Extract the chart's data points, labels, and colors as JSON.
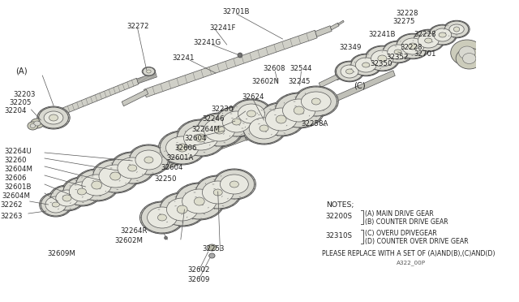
{
  "bg_color": "#ffffff",
  "line_color": "#555555",
  "text_color": "#222222",
  "gear_face": "#d8d8d0",
  "gear_edge": "#555555",
  "shaft_color": "#cccccc",
  "notes": {
    "title": "NOTES;",
    "n1_code": "32200S",
    "n1_a": "(A) MAIN DRIVE GEAR",
    "n1_b": "(B) COUNTER DRIVE GEAR",
    "n2_code": "32310S",
    "n2_c": "(C) OVERU DPIVEGEAR",
    "n2_d": "(D) COUNTER OVER DRIVE GEAR",
    "replace": "PLEASE REPLACE WITH A SET OF (A)AND(B),(C)AND(D)",
    "partnum": "A322_00P"
  }
}
